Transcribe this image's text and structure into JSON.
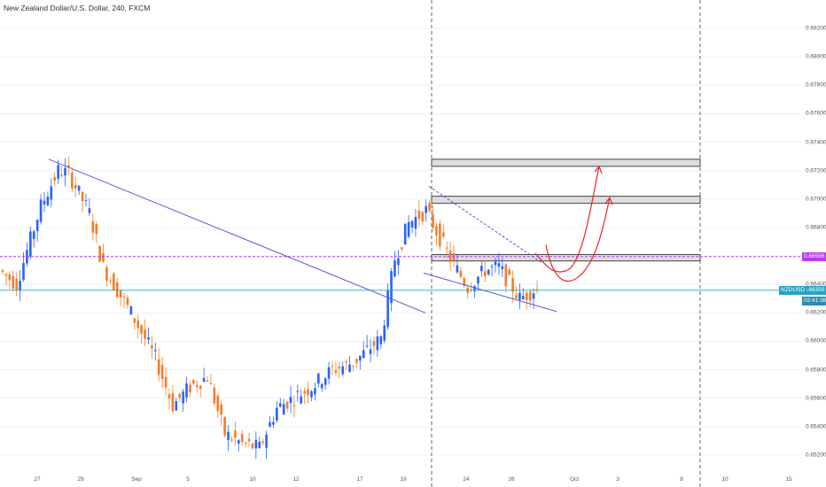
{
  "chart": {
    "title": "New Zealand Dollar/U.S. Dollar, 240, FXCM",
    "symbol": "NZDUSD",
    "current_price": "0.66359",
    "countdown": "02:41:38",
    "level_label": "0.66596"
  },
  "colors": {
    "up": "#2962ff",
    "down": "#f57c2b",
    "trendline": "#5b57d6",
    "level_line": "#b83df0",
    "price_line": "#26a3c4",
    "projection": "#e8262b",
    "zone_fill": "#dddddd",
    "zone_border": "#444444"
  },
  "chart_data": {
    "type": "candlestick",
    "title": "New Zealand Dollar/U.S. Dollar, 240, FXCM",
    "timeframe": "240",
    "ylim": [
      0.6515,
      0.683
    ],
    "y_ticks": [
      "0.68200",
      "0.68000",
      "0.67800",
      "0.67600",
      "0.67400",
      "0.67200",
      "0.67000",
      "0.66800",
      "0.66600",
      "0.66400",
      "0.66200",
      "0.66000",
      "0.65800",
      "0.65600",
      "0.65400",
      "0.65200"
    ],
    "x_ticks": [
      "27",
      "29",
      "Sep",
      "5",
      "10",
      "12",
      "17",
      "19",
      "24",
      "26",
      "Oct",
      "3",
      "8",
      "10",
      "15"
    ],
    "candle_count": 155,
    "waypoints": [
      [
        0,
        0.665
      ],
      [
        5,
        0.664
      ],
      [
        12,
        0.6695
      ],
      [
        17,
        0.672
      ],
      [
        20,
        0.6718
      ],
      [
        26,
        0.669
      ],
      [
        30,
        0.6652
      ],
      [
        38,
        0.662
      ],
      [
        45,
        0.6588
      ],
      [
        50,
        0.6555
      ],
      [
        55,
        0.6568
      ],
      [
        60,
        0.6575
      ],
      [
        65,
        0.6535
      ],
      [
        70,
        0.6528
      ],
      [
        75,
        0.6525
      ],
      [
        80,
        0.6553
      ],
      [
        90,
        0.6568
      ],
      [
        96,
        0.658
      ],
      [
        102,
        0.6585
      ],
      [
        110,
        0.6602
      ],
      [
        114,
        0.6658
      ],
      [
        118,
        0.6683
      ],
      [
        123,
        0.6692
      ],
      [
        130,
        0.6658
      ],
      [
        135,
        0.6638
      ],
      [
        140,
        0.665
      ],
      [
        144,
        0.6652
      ],
      [
        150,
        0.663
      ],
      [
        154,
        0.6636
      ]
    ],
    "last_price": 0.66359,
    "horizontal_level": 0.66596,
    "zones": [
      {
        "from": 0.6723,
        "to": 0.6728
      },
      {
        "from": 0.6697,
        "to": 0.6702
      },
      {
        "from": 0.66565,
        "to": 0.6661
      }
    ],
    "trendlines": [
      {
        "style": "solid",
        "from": [
          "27",
          0.6728
        ],
        "to": [
          "24",
          0.662
        ]
      },
      {
        "style": "solid",
        "from": [
          "19",
          0.6648
        ],
        "to": [
          "26",
          0.6621
        ]
      },
      {
        "style": "dashed",
        "from": [
          "19",
          0.6709
        ],
        "to": [
          "26",
          0.6655
        ]
      }
    ],
    "vertical_markers": [
      "19",
      "8"
    ],
    "projections": [
      {
        "path": [
          [
            "26",
            0.6662
          ],
          [
            "26",
            0.6659
          ],
          [
            "Oct",
            0.6659
          ],
          [
            "Oct",
            0.6723
          ]
        ]
      },
      {
        "path": [
          [
            "26",
            0.6668
          ],
          [
            "26",
            0.665
          ],
          [
            "Oct",
            0.667
          ],
          [
            "3",
            0.6701
          ]
        ]
      }
    ]
  }
}
